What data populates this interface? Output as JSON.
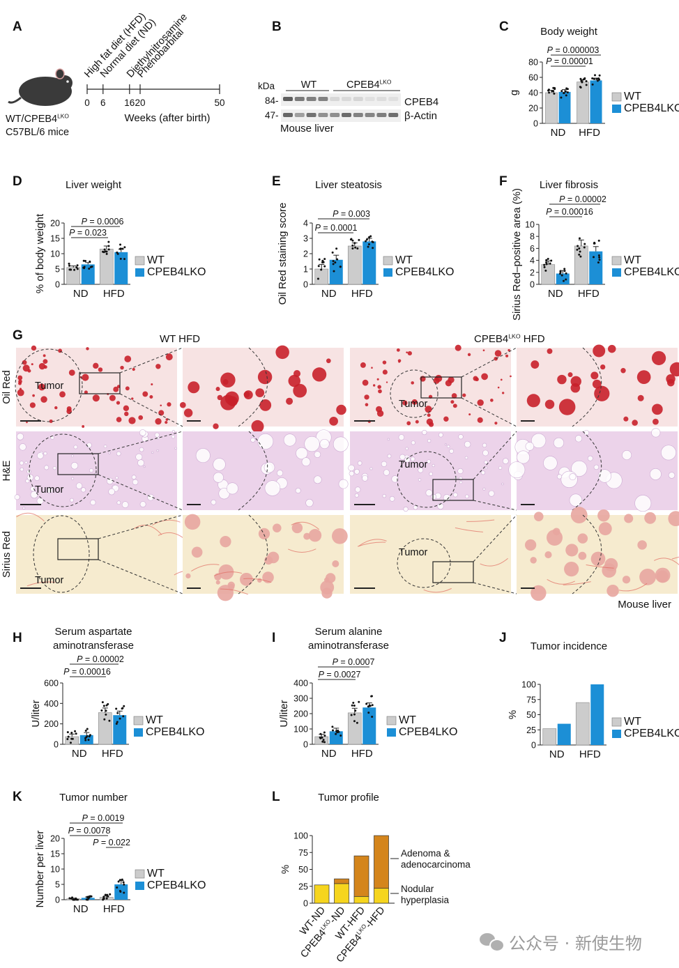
{
  "chart_data": [
    {
      "panel": "A",
      "type": "timeline",
      "letter": "A",
      "diets": [
        "High fat diet (HFD)",
        "Normal diet (ND)"
      ],
      "treatments": [
        "Diethylnitrosamine",
        "Phenobarbital"
      ],
      "ticks": [
        0,
        6,
        16,
        20,
        50
      ],
      "xlabel": "Weeks (after birth)",
      "mouse_label": "WT/CPEB4",
      "mouse_label_sup": "LKO",
      "mouse_strain": "C57BL/6 mice"
    },
    {
      "panel": "B",
      "type": "blot",
      "letter": "B",
      "kda_label": "kDa",
      "groups": [
        "WT",
        "CPEB4"
      ],
      "group_sup": "LKO",
      "markers": [
        "84-",
        "47-"
      ],
      "bands": [
        "CPEB4",
        "β-Actin"
      ],
      "caption": "Mouse liver"
    },
    {
      "panel": "C",
      "type": "bar",
      "letter": "C",
      "title": "Body weight",
      "ylabel": "g",
      "categories": [
        "ND",
        "HFD"
      ],
      "ylim": [
        0,
        80
      ],
      "yticks": [
        0,
        20,
        40,
        60,
        80
      ],
      "series": [
        {
          "name": "WT",
          "values": [
            40,
            54
          ],
          "errors": [
            3,
            3
          ]
        },
        {
          "name": "CPEB4",
          "sup": "LKO",
          "values": [
            41,
            56
          ],
          "errors": [
            3,
            3
          ]
        }
      ],
      "pvalues": [
        "P = 0.000003",
        "P = 0.00001"
      ]
    },
    {
      "panel": "D",
      "type": "bar",
      "letter": "D",
      "title": "Liver weight",
      "ylabel": "% of body weight",
      "categories": [
        "ND",
        "HFD"
      ],
      "ylim": [
        0,
        20
      ],
      "yticks": [
        0,
        5,
        10,
        15,
        20
      ],
      "series": [
        {
          "name": "WT",
          "values": [
            5.5,
            11.5
          ],
          "errors": [
            0.5,
            1.0
          ]
        },
        {
          "name": "CPEB4",
          "sup": "LKO",
          "values": [
            6.5,
            10.5
          ],
          "errors": [
            0.6,
            1.0
          ]
        }
      ],
      "pvalues": [
        "P = 0.0006",
        "P = 0.023"
      ]
    },
    {
      "panel": "E",
      "type": "bar",
      "letter": "E",
      "title": "Liver steatosis",
      "ylabel": "Oil Red staining score",
      "categories": [
        "ND",
        "HFD"
      ],
      "ylim": [
        0,
        4
      ],
      "yticks": [
        0,
        1,
        2,
        3,
        4
      ],
      "series": [
        {
          "name": "WT",
          "values": [
            1.0,
            2.5
          ],
          "errors": [
            0.3,
            0.2
          ]
        },
        {
          "name": "CPEB4",
          "sup": "LKO",
          "values": [
            1.6,
            2.8
          ],
          "errors": [
            0.3,
            0.2
          ]
        }
      ],
      "pvalues": [
        "P = 0.003",
        "P = 0.0001"
      ]
    },
    {
      "panel": "F",
      "type": "bar",
      "letter": "F",
      "title": "Liver fibrosis",
      "ylabel": "Sirius Red–positive area (%)",
      "categories": [
        "ND",
        "HFD"
      ],
      "ylim": [
        0,
        10
      ],
      "yticks": [
        0,
        2,
        4,
        6,
        8,
        10
      ],
      "series": [
        {
          "name": "WT",
          "values": [
            3.3,
            6.4
          ],
          "errors": [
            0.6,
            1.0
          ]
        },
        {
          "name": "CPEB4",
          "sup": "LKO",
          "values": [
            1.8,
            5.5
          ],
          "errors": [
            0.5,
            0.8
          ]
        }
      ],
      "pvalues": [
        "P = 0.00002",
        "P = 0.00016"
      ]
    },
    {
      "panel": "G",
      "type": "image-grid",
      "letter": "G",
      "col_titles": [
        {
          "text": "WT HFD",
          "sup": ""
        },
        {
          "text": "CPEB4",
          "sup": "LKO",
          "after": " HFD"
        }
      ],
      "row_labels": [
        "Oil Red",
        "H&E",
        "Sirius Red"
      ],
      "tumor_label": "Tumor",
      "caption": "Mouse liver"
    },
    {
      "panel": "H",
      "type": "bar",
      "letter": "H",
      "title": [
        "Serum aspartate",
        "aminotransferase"
      ],
      "ylabel": "U/liter",
      "categories": [
        "ND",
        "HFD"
      ],
      "ylim": [
        0,
        600
      ],
      "yticks": [
        0,
        200,
        400,
        600
      ],
      "series": [
        {
          "name": "WT",
          "values": [
            75,
            310
          ],
          "errors": [
            25,
            45
          ]
        },
        {
          "name": "CPEB4",
          "sup": "LKO",
          "values": [
            90,
            285
          ],
          "errors": [
            25,
            40
          ]
        }
      ],
      "pvalues": [
        "P = 0.00002",
        "P = 0.00016"
      ]
    },
    {
      "panel": "I",
      "type": "bar",
      "letter": "I",
      "title": [
        "Serum alanine",
        "aminotransferase"
      ],
      "ylabel": "U/liter",
      "categories": [
        "ND",
        "HFD"
      ],
      "ylim": [
        0,
        400
      ],
      "yticks": [
        0,
        100,
        200,
        300,
        400
      ],
      "series": [
        {
          "name": "WT",
          "values": [
            50,
            205
          ],
          "errors": [
            15,
            30
          ]
        },
        {
          "name": "CPEB4",
          "sup": "LKO",
          "values": [
            85,
            240
          ],
          "errors": [
            20,
            30
          ]
        }
      ],
      "pvalues": [
        "P = 0.0007",
        "P = 0.0027"
      ]
    },
    {
      "panel": "J",
      "type": "bar",
      "letter": "J",
      "title": "Tumor incidence",
      "ylabel": "%",
      "categories": [
        "ND",
        "HFD"
      ],
      "ylim": [
        0,
        100
      ],
      "yticks": [
        0,
        25,
        50,
        75,
        100
      ],
      "series": [
        {
          "name": "WT",
          "values": [
            27,
            70
          ],
          "errors": [
            0,
            0
          ]
        },
        {
          "name": "CPEB4",
          "sup": "LKO",
          "values": [
            35,
            100
          ],
          "errors": [
            0,
            0
          ]
        }
      ],
      "pvalues": []
    },
    {
      "panel": "K",
      "type": "bar",
      "letter": "K",
      "title": "Tumor number",
      "ylabel": "Number per liver",
      "categories": [
        "ND",
        "HFD"
      ],
      "ylim": [
        0,
        20
      ],
      "yticks": [
        0,
        5,
        10,
        15,
        20
      ],
      "series": [
        {
          "name": "WT",
          "values": [
            0.3,
            0.8
          ],
          "errors": [
            0.2,
            0.4
          ]
        },
        {
          "name": "CPEB4",
          "sup": "LKO",
          "values": [
            0.6,
            5
          ],
          "errors": [
            0.3,
            1.2
          ]
        }
      ],
      "pvalues": [
        "P = 0.0019",
        "P = 0.0078",
        "P = 0.022"
      ]
    },
    {
      "panel": "L",
      "type": "stacked-bar",
      "letter": "L",
      "title": "Tumor profile",
      "ylabel": "%",
      "categories": [
        {
          "text": "WT-ND"
        },
        {
          "text": "CPEB4",
          "sup": "LKO",
          "after": "-ND"
        },
        {
          "text": "WT-HFD"
        },
        {
          "text": "CPEB4",
          "sup": "LKO",
          "after": "-HFD"
        }
      ],
      "ylim": [
        0,
        100
      ],
      "yticks": [
        0,
        25,
        50,
        75,
        100
      ],
      "series": [
        {
          "name": "Nodular hyperplasia",
          "values": [
            27,
            29,
            10,
            22
          ],
          "color": "#f6d51e"
        },
        {
          "name": "Adenoma & adenocarcinoma",
          "values": [
            0,
            7,
            60,
            78
          ],
          "color": "#d4851c"
        }
      ],
      "legend_lines": [
        [
          "Adenoma &",
          "adenocarcinoma"
        ],
        [
          "Nodular",
          "hyperplasia"
        ]
      ]
    }
  ],
  "watermark": "公众号 · 新使生物",
  "colors": {
    "wt": "#cccccc",
    "lko": "#1c8fd6",
    "nodular": "#f6d51e",
    "adenoma": "#d4851c"
  }
}
